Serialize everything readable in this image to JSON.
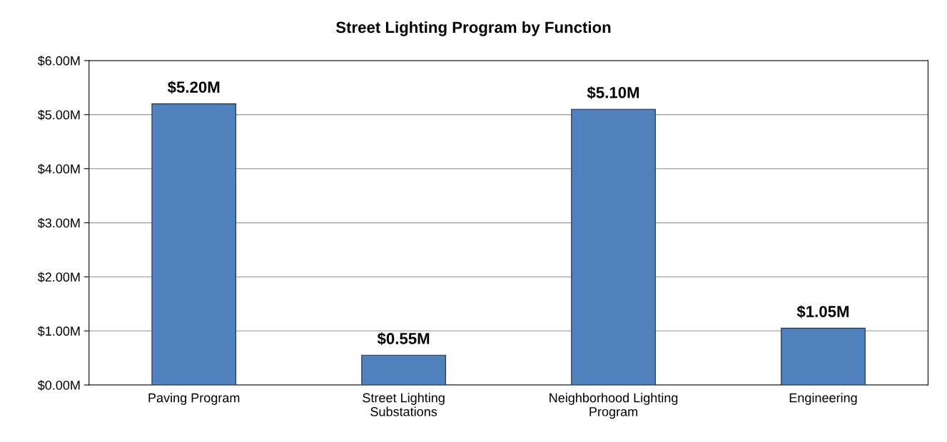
{
  "chart_data": {
    "type": "bar",
    "title": "Street Lighting Program by Function",
    "categories": [
      "Paving Program",
      "Street Lighting Substations",
      "Neighborhood Lighting Program",
      "Engineering"
    ],
    "values": [
      5.2,
      0.55,
      5.1,
      1.05
    ],
    "value_labels": [
      "$5.20M",
      "$0.55M",
      "$5.10M",
      "$1.05M"
    ],
    "color": "#4f81bd",
    "ylim": [
      0,
      6
    ],
    "yticks": [
      {
        "value": 0,
        "label": "$0.00M"
      },
      {
        "value": 1,
        "label": "$1.00M"
      },
      {
        "value": 2,
        "label": "$2.00M"
      },
      {
        "value": 3,
        "label": "$3.00M"
      },
      {
        "value": 4,
        "label": "$4.00M"
      },
      {
        "value": 5,
        "label": "$5.00M"
      },
      {
        "value": 6,
        "label": "$6.00M"
      }
    ],
    "grid": "y"
  }
}
